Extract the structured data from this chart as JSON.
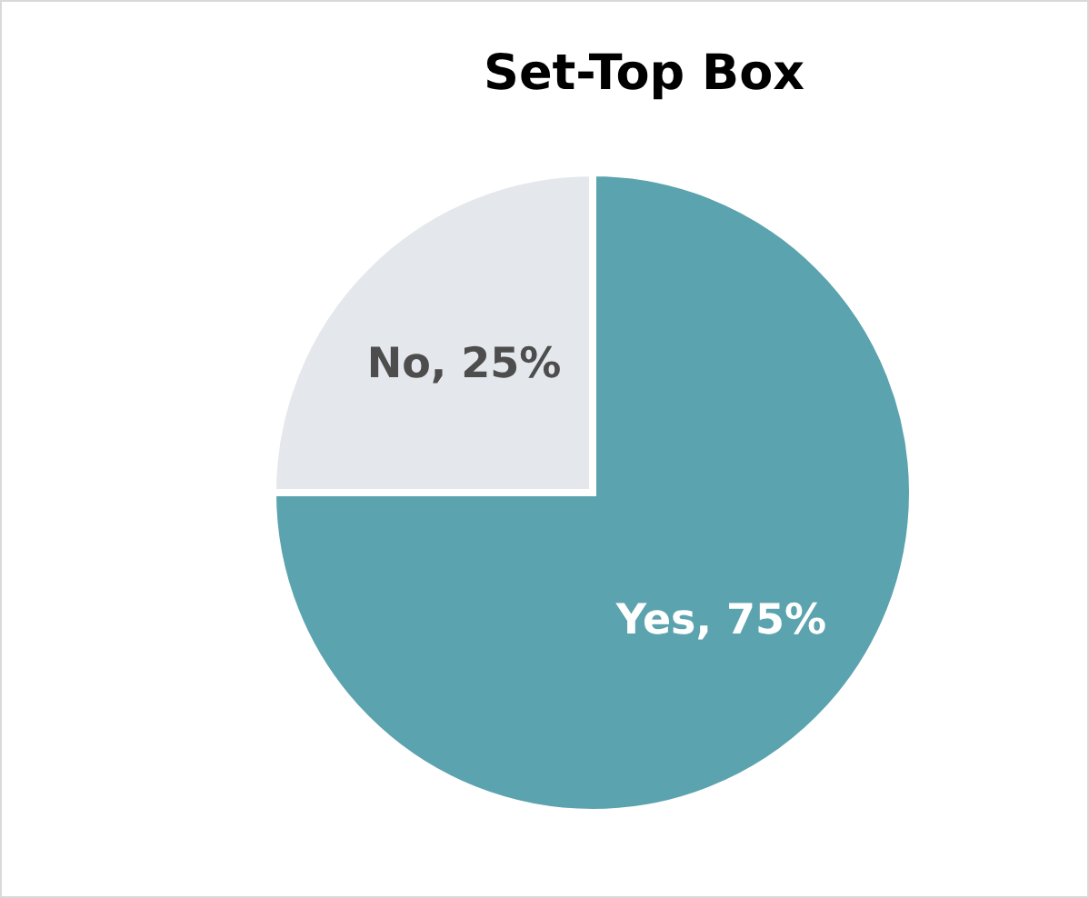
{
  "chart_data": {
    "type": "pie",
    "title": "Set-Top Box",
    "categories": [
      "Yes",
      "No"
    ],
    "values": [
      75,
      25
    ],
    "colors": [
      "#5ba3ae",
      "#e4e7eb"
    ],
    "value_labels": [
      "75%",
      "25%"
    ],
    "legend": false
  }
}
